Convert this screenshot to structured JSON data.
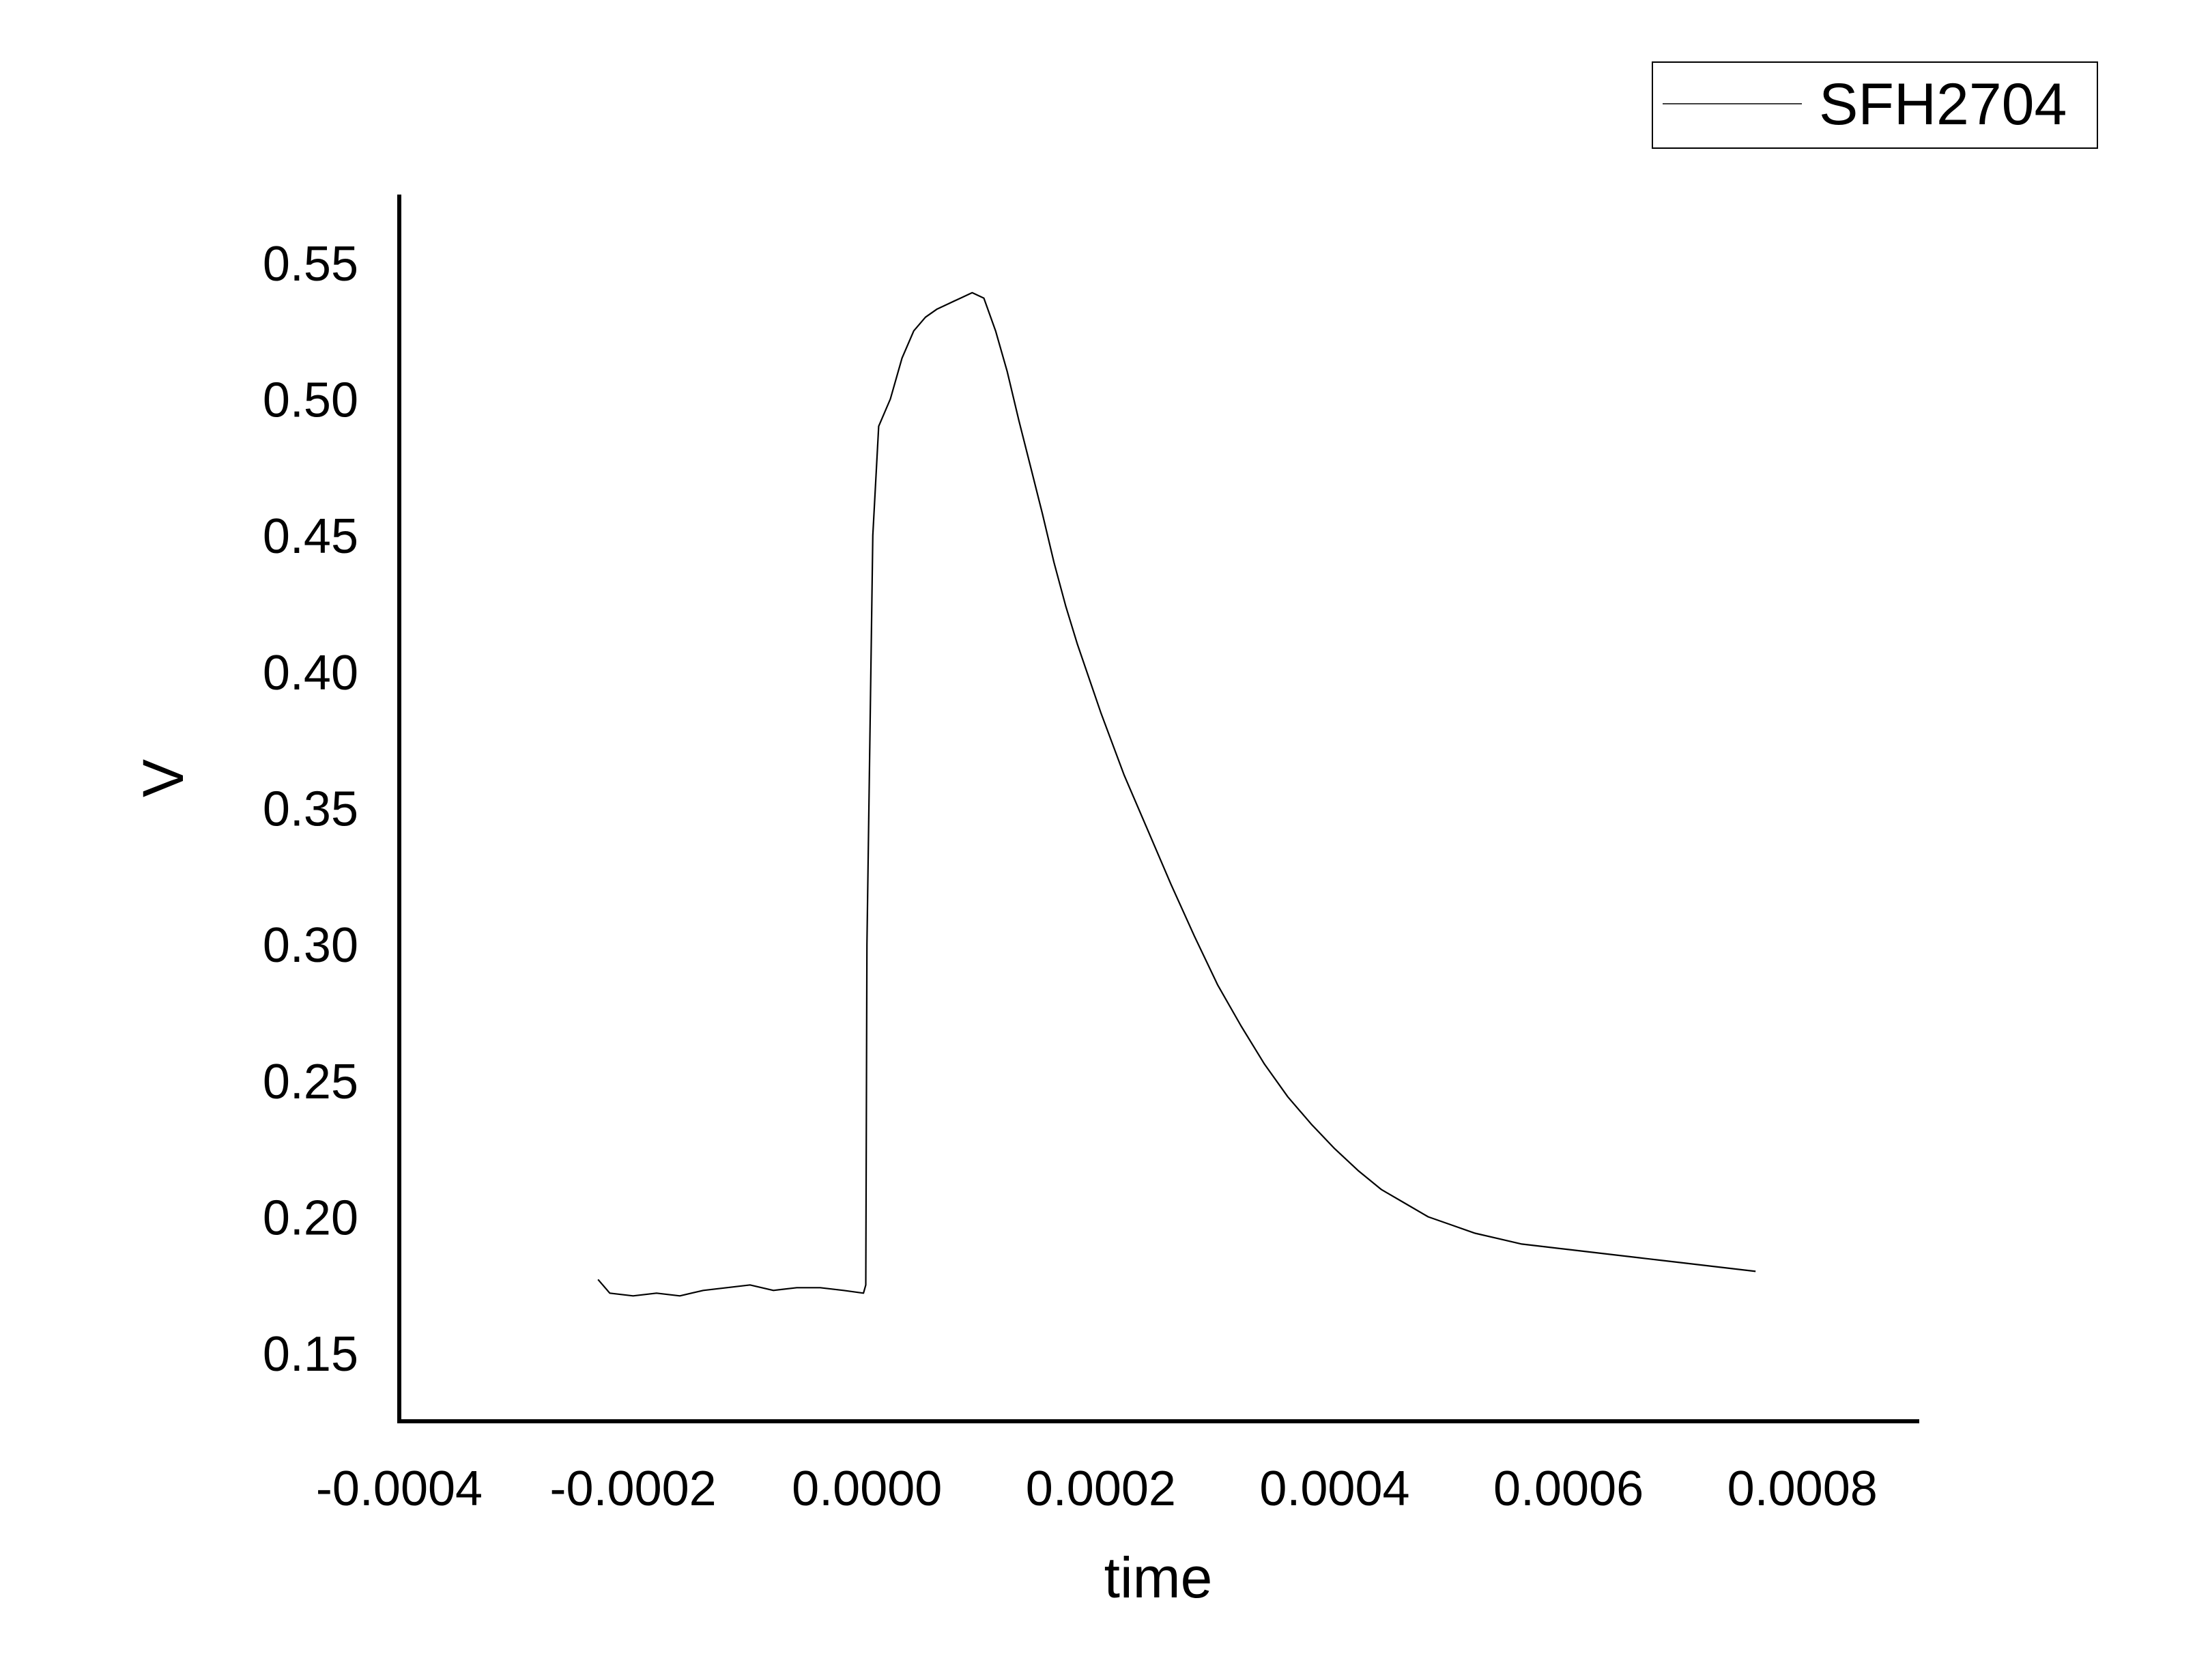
{
  "chart_data": {
    "type": "line",
    "xlabel": "time",
    "ylabel": "V",
    "xlim": [
      -0.0004,
      0.0009
    ],
    "ylim": [
      0.125,
      0.575
    ],
    "x_ticks": [
      -0.0004,
      -0.0002,
      0.0,
      0.0002,
      0.0004,
      0.0006,
      0.0008
    ],
    "x_tick_labels": [
      "-0.0004",
      "-0.0002",
      "0.0000",
      "0.0002",
      "0.0004",
      "0.0006",
      "0.0008"
    ],
    "y_ticks": [
      0.15,
      0.2,
      0.25,
      0.3,
      0.35,
      0.4,
      0.45,
      0.5,
      0.55
    ],
    "y_tick_labels": [
      "0.15",
      "0.20",
      "0.25",
      "0.30",
      "0.35",
      "0.40",
      "0.45",
      "0.50",
      "0.55"
    ],
    "grid": false,
    "legend": {
      "position": "top-right"
    },
    "colors": {
      "line": "#000000",
      "axis": "#000000"
    },
    "series": [
      {
        "name": "SFH2704",
        "x": [
          -0.00023,
          -0.00022,
          -0.0002,
          -0.00018,
          -0.00016,
          -0.00014,
          -0.00012,
          -0.0001,
          -8e-05,
          -6e-05,
          -4e-05,
          -2e-05,
          -3e-06,
          -1e-06,
          0.0,
          5e-06,
          1e-05,
          2e-05,
          3e-05,
          4e-05,
          5e-05,
          6e-05,
          7e-05,
          8e-05,
          9e-05,
          0.0001,
          0.00011,
          0.00012,
          0.00013,
          0.00014,
          0.00015,
          0.00016,
          0.00017,
          0.00018,
          0.0002,
          0.00022,
          0.00024,
          0.00026,
          0.00028,
          0.0003,
          0.00032,
          0.00034,
          0.00036,
          0.00038,
          0.0004,
          0.00042,
          0.00044,
          0.00046,
          0.00048,
          0.0005,
          0.00052,
          0.00054,
          0.00056,
          0.00058,
          0.0006,
          0.00062,
          0.00064,
          0.00066,
          0.00068,
          0.0007,
          0.00072,
          0.00074,
          0.00076
        ],
        "y": [
          0.177,
          0.172,
          0.171,
          0.172,
          0.171,
          0.173,
          0.174,
          0.175,
          0.173,
          0.174,
          0.174,
          0.173,
          0.172,
          0.175,
          0.3,
          0.45,
          0.49,
          0.5,
          0.515,
          0.525,
          0.53,
          0.533,
          0.535,
          0.537,
          0.539,
          0.537,
          0.525,
          0.51,
          0.492,
          0.475,
          0.458,
          0.44,
          0.424,
          0.41,
          0.385,
          0.362,
          0.342,
          0.322,
          0.303,
          0.285,
          0.27,
          0.256,
          0.244,
          0.234,
          0.225,
          0.217,
          0.21,
          0.205,
          0.2,
          0.197,
          0.194,
          0.192,
          0.19,
          0.189,
          0.188,
          0.187,
          0.186,
          0.185,
          0.184,
          0.183,
          0.182,
          0.181,
          0.18
        ]
      }
    ]
  }
}
